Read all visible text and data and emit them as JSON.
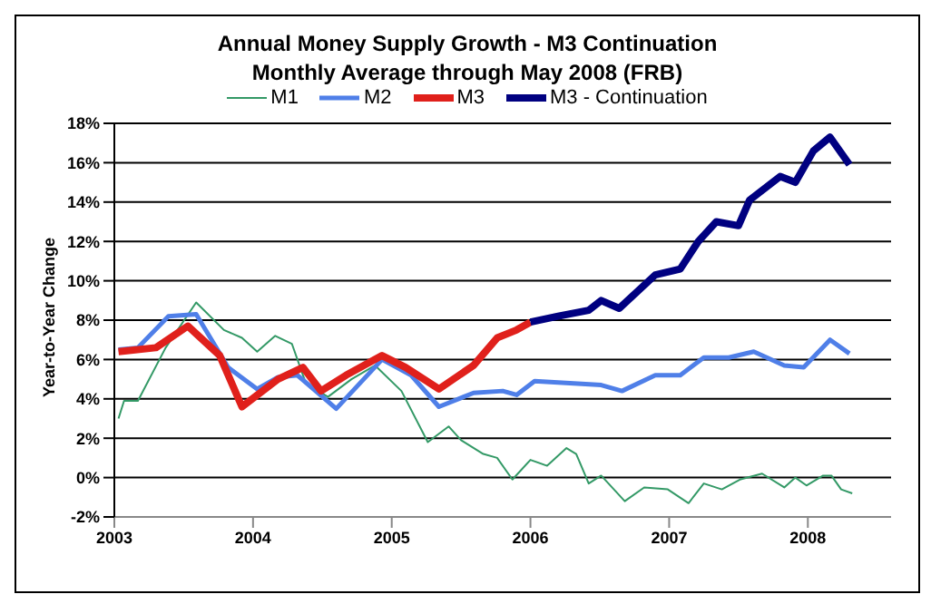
{
  "chart_data": {
    "type": "line",
    "title": "Annual Money Supply Growth - M3 Continuation",
    "subtitle": "Monthly Average through May 2008 (FRB)",
    "ylabel": "Year-to-Year Change",
    "xlim": [
      2003,
      2008.6
    ],
    "xticks": [
      2003,
      2004,
      2005,
      2006,
      2007,
      2008
    ],
    "ylim": [
      -2,
      18
    ],
    "yticks": [
      {
        "value": -2,
        "label": "-2%"
      },
      {
        "value": 0,
        "label": "0%"
      },
      {
        "value": 2,
        "label": "2%"
      },
      {
        "value": 4,
        "label": "4%"
      },
      {
        "value": 6,
        "label": "6%"
      },
      {
        "value": 8,
        "label": "8%"
      },
      {
        "value": 10,
        "label": "10%"
      },
      {
        "value": 12,
        "label": "12%"
      },
      {
        "value": 14,
        "label": "14%"
      },
      {
        "value": 16,
        "label": "16%"
      },
      {
        "value": 18,
        "label": "18%"
      }
    ],
    "grid": "y",
    "legend": "top",
    "marker": "none",
    "line_style": "solid",
    "series": [
      {
        "name": "M1",
        "color": "#339966",
        "x": [
          2003.03,
          2003.07,
          2003.17,
          2003.37,
          2003.59,
          2003.79,
          2003.92,
          2004.03,
          2004.16,
          2004.28,
          2004.38,
          2004.54,
          2004.71,
          2004.88,
          2005.07,
          2005.26,
          2005.41,
          2005.5,
          2005.66,
          2005.76,
          2005.87,
          2006.0,
          2006.12,
          2006.26,
          2006.33,
          2006.42,
          2006.51,
          2006.68,
          2006.82,
          2006.99,
          2007.14,
          2007.25,
          2007.38,
          2007.51,
          2007.67,
          2007.83,
          2007.91,
          2007.99,
          2008.11,
          2008.17,
          2008.24,
          2008.32
        ],
        "values": [
          3.0,
          3.9,
          3.9,
          6.6,
          8.9,
          7.5,
          7.1,
          6.4,
          7.2,
          6.8,
          4.8,
          4.1,
          5.0,
          5.7,
          4.4,
          1.8,
          2.6,
          1.9,
          1.2,
          1.0,
          -0.1,
          0.9,
          0.6,
          1.5,
          1.2,
          -0.3,
          0.1,
          -1.2,
          -0.5,
          -0.6,
          -1.3,
          -0.3,
          -0.6,
          -0.1,
          0.2,
          -0.5,
          0.0,
          -0.4,
          0.1,
          0.1,
          -0.6,
          -0.8
        ]
      },
      {
        "name": "M2",
        "color": "#4f7fe8",
        "x": [
          2003.03,
          2003.17,
          2003.39,
          2003.59,
          2003.82,
          2004.03,
          2004.18,
          2004.32,
          2004.6,
          2004.93,
          2005.14,
          2005.34,
          2005.59,
          2005.8,
          2005.9,
          2006.03,
          2006.51,
          2006.66,
          2006.9,
          2007.08,
          2007.25,
          2007.43,
          2007.61,
          2007.83,
          2007.97,
          2008.16,
          2008.3
        ],
        "values": [
          6.5,
          6.6,
          8.2,
          8.3,
          5.6,
          4.5,
          5.1,
          5.2,
          3.5,
          6.0,
          5.2,
          3.6,
          4.3,
          4.4,
          4.2,
          4.9,
          4.7,
          4.4,
          5.2,
          5.2,
          6.1,
          6.1,
          6.4,
          5.7,
          5.6,
          7.0,
          6.3
        ]
      },
      {
        "name": "M3",
        "color": "#e0201b",
        "x": [
          2003.03,
          2003.3,
          2003.53,
          2003.76,
          2003.92,
          2004.18,
          2004.36,
          2004.49,
          2004.67,
          2004.93,
          2005.1,
          2005.34,
          2005.59,
          2005.76,
          2005.9,
          2006.0
        ],
        "values": [
          6.4,
          6.6,
          7.7,
          6.2,
          3.6,
          5.0,
          5.6,
          4.4,
          5.2,
          6.2,
          5.6,
          4.5,
          5.7,
          7.1,
          7.5,
          7.9
        ]
      },
      {
        "name": "M3 - Continuation",
        "color": "#000080",
        "x": [
          2006.0,
          2006.2,
          2006.42,
          2006.51,
          2006.64,
          2006.9,
          2007.08,
          2007.21,
          2007.34,
          2007.5,
          2007.58,
          2007.8,
          2007.91,
          2008.04,
          2008.16,
          2008.3
        ],
        "values": [
          7.9,
          8.2,
          8.5,
          9.0,
          8.6,
          10.3,
          10.6,
          12.0,
          13.0,
          12.8,
          14.1,
          15.3,
          15.0,
          16.6,
          17.3,
          15.9
        ]
      }
    ]
  }
}
